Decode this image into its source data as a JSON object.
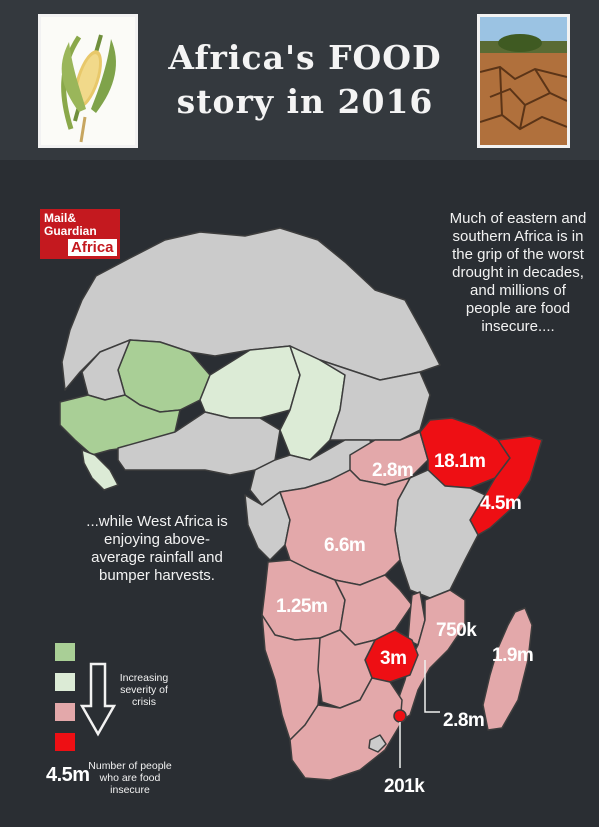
{
  "title": {
    "line1": "Africa's FOOD",
    "line2": "story in 2016"
  },
  "logo": {
    "line1": "Mail&",
    "line2": "Guardian",
    "line3": "Africa"
  },
  "notes": {
    "east": "Much of eastern and southern Africa is in the grip of the worst drought in decades, and millions of people are food insecure....",
    "west": "...while West Africa is enjoying above-average rainfall and bumper harvests."
  },
  "regions": [
    {
      "label": "18.1m",
      "value_millions": 18.1
    },
    {
      "label": "2.8m",
      "value_millions": 2.8
    },
    {
      "label": "4.5m",
      "value_millions": 4.5
    },
    {
      "label": "6.6m",
      "value_millions": 6.6
    },
    {
      "label": "1.25m",
      "value_millions": 1.25
    },
    {
      "label": "750k",
      "value_millions": 0.75
    },
    {
      "label": "3m",
      "value_millions": 3
    },
    {
      "label": "1.9m",
      "value_millions": 1.9
    },
    {
      "label": "2.8m",
      "value_millions": 2.8
    },
    {
      "label": "201k",
      "value_millions": 0.201
    }
  ],
  "legend": {
    "severity_label": "Increasing severity of crisis",
    "example_value": "4.5m",
    "example_label": "Number of people who are food insecure",
    "colors": [
      "#a9cf96",
      "#dcebd6",
      "#e3a8aa",
      "#ee0f14"
    ]
  },
  "colors": {
    "background": "#2a2e33",
    "neutral_land": "#cbcbcb",
    "border": "#3d3d3d",
    "green": "#a9cf96",
    "light_green": "#dcebd6",
    "pink": "#e3a8aa",
    "red": "#ee0f14"
  }
}
